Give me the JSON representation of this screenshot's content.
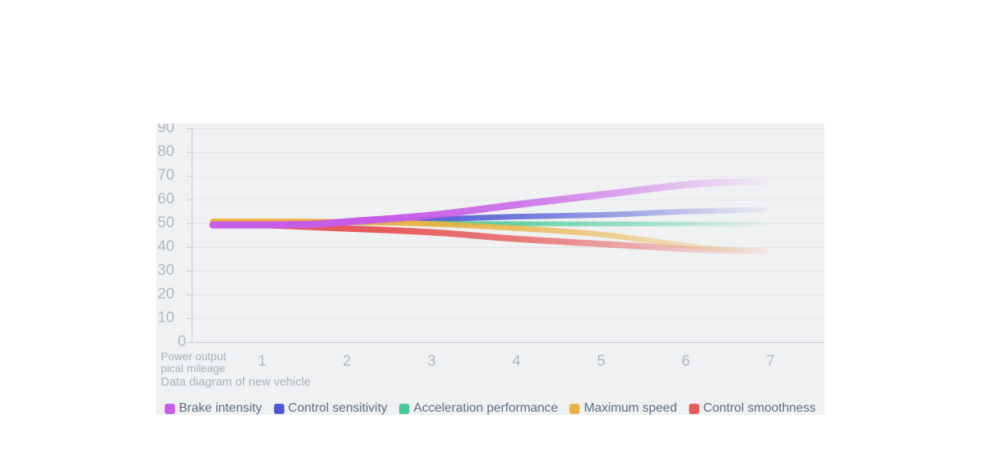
{
  "chart_data": {
    "type": "line",
    "title": "Data diagram of new vehicle",
    "x_axis": {
      "name_lines": [
        "Power output",
        "pical mileage"
      ],
      "tick_labels": [
        "1",
        "2",
        "3",
        "4",
        "5",
        "6",
        "7"
      ]
    },
    "y_axis": {
      "min": 0,
      "max": 90,
      "tick_step": 10,
      "tick_labels": [
        "90",
        "80",
        "70",
        "60",
        "50",
        "40",
        "30",
        "20",
        "10",
        "0"
      ]
    },
    "grid": true,
    "legend_position": "bottom",
    "style": {
      "smooth": true,
      "fade_to_right": true,
      "panel_bg": "#f0f1f2",
      "grid_color": "#e2e5e9",
      "axis_color": "#c9ced6"
    },
    "series": [
      {
        "name": "Brake intensity",
        "color": "#c75ce6",
        "width": 9,
        "points": [
          [
            0.42,
            49.3
          ],
          [
            1,
            49.3
          ],
          [
            1.6,
            49.6
          ],
          [
            2,
            50.6
          ],
          [
            3,
            53.4
          ],
          [
            4,
            57.8
          ],
          [
            5,
            62.0
          ],
          [
            6,
            66.2
          ],
          [
            6.5,
            67.3
          ],
          [
            6.93,
            67.5
          ]
        ]
      },
      {
        "name": "Control sensitivity",
        "color": "#4f58d4",
        "width": 7,
        "points": [
          [
            0.42,
            50.0
          ],
          [
            1,
            50.0
          ],
          [
            2,
            50.4
          ],
          [
            3,
            51.6
          ],
          [
            4,
            52.8
          ],
          [
            5,
            53.5
          ],
          [
            6,
            54.9
          ],
          [
            6.93,
            55.7
          ]
        ]
      },
      {
        "name": "Acceleration performance",
        "color": "#44cb98",
        "width": 6,
        "points": [
          [
            0.42,
            50.2
          ],
          [
            1,
            50.2
          ],
          [
            2,
            50.2
          ],
          [
            3,
            50.0
          ],
          [
            4,
            49.8
          ],
          [
            5,
            49.7
          ],
          [
            6,
            49.7
          ],
          [
            6.93,
            49.7
          ]
        ]
      },
      {
        "name": "Maximum speed",
        "color": "#ecb243",
        "width": 7,
        "points": [
          [
            0.42,
            50.8
          ],
          [
            1,
            50.8
          ],
          [
            2,
            50.6
          ],
          [
            3,
            49.7
          ],
          [
            4,
            47.9
          ],
          [
            5,
            45.3
          ],
          [
            6,
            40.6
          ],
          [
            6.5,
            39.0
          ],
          [
            6.93,
            38.4
          ]
        ]
      },
      {
        "name": "Control smoothness",
        "color": "#e65c5c",
        "width": 8,
        "points": [
          [
            0.42,
            49.3
          ],
          [
            1,
            49.2
          ],
          [
            2,
            47.8
          ],
          [
            3,
            46.2
          ],
          [
            4,
            43.4
          ],
          [
            5,
            41.3
          ],
          [
            6,
            39.2
          ],
          [
            6.5,
            38.5
          ],
          [
            6.93,
            38.2
          ]
        ]
      }
    ]
  }
}
